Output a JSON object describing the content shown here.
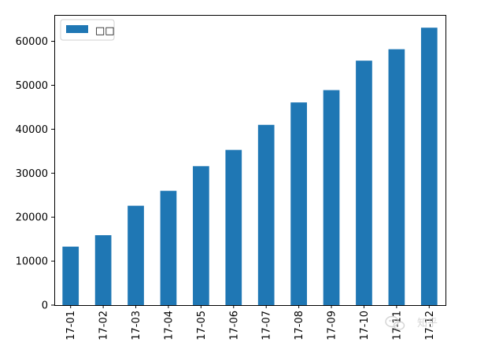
{
  "chart_data": {
    "type": "bar",
    "categories": [
      "17-01",
      "17-02",
      "17-03",
      "17-04",
      "17-05",
      "17-06",
      "17-07",
      "17-08",
      "17-09",
      "17-10",
      "17-11",
      "17-12"
    ],
    "series": [
      {
        "name": "□□",
        "values": [
          13300,
          15900,
          22600,
          26000,
          31600,
          35300,
          41000,
          46100,
          48900,
          55600,
          58200,
          63100
        ],
        "color": "#1f77b4"
      }
    ],
    "title": "",
    "xlabel": "",
    "ylabel": "",
    "ylim": [
      0,
      66000
    ],
    "yticks": [
      0,
      10000,
      20000,
      30000,
      40000,
      50000,
      60000
    ],
    "yticklabels": [
      "0",
      "10000",
      "20000",
      "30000",
      "40000",
      "50000",
      "60000"
    ],
    "grid": false,
    "legend": {
      "placement": "top-left",
      "label": "□□"
    }
  },
  "watermark": {
    "icon": "wechat-icon",
    "text": "知乎"
  }
}
